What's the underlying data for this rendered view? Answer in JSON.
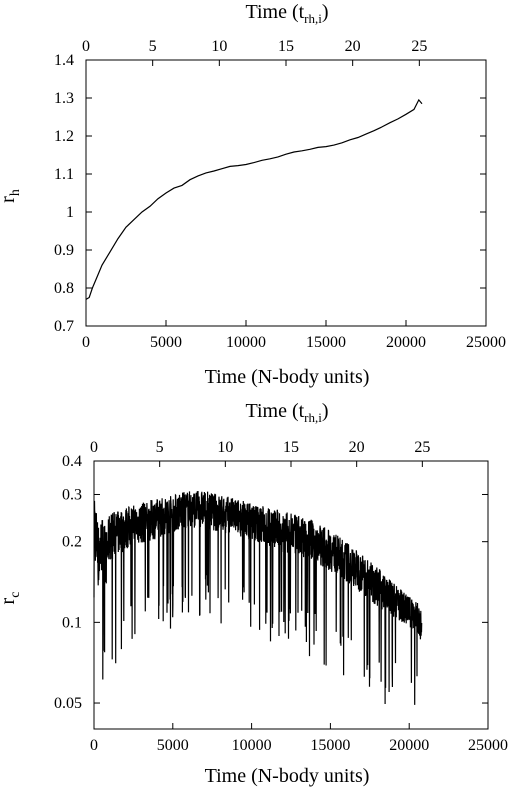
{
  "chart_data": [
    {
      "type": "line",
      "title": "",
      "xlabel": "Time (N-body units)",
      "x2label": {
        "base": "Time (t",
        "sub": "rh,i",
        "close": ")"
      },
      "ylabel": {
        "base": "r",
        "sub": "h"
      },
      "xlim": [
        0,
        25000
      ],
      "x2lim": [
        0,
        30
      ],
      "ylim": [
        0.7,
        1.4
      ],
      "grid": false,
      "xticks": [
        "0",
        "5000",
        "10000",
        "15000",
        "20000",
        "25000"
      ],
      "x2ticks": [
        "0",
        "5",
        "10",
        "15",
        "20",
        "25"
      ],
      "yticks": [
        "0.7",
        "0.8",
        "0.9",
        "1",
        "1.1",
        "1.2",
        "1.3",
        "1.4"
      ],
      "series": [
        {
          "x": [
            0,
            200,
            400,
            700,
            1000,
            1500,
            2000,
            2500,
            3000,
            3500,
            4000,
            4500,
            5000,
            5500,
            6000,
            6500,
            7000,
            7500,
            8000,
            8500,
            9000,
            9500,
            10000,
            10500,
            11000,
            11500,
            12000,
            12500,
            13000,
            13500,
            14000,
            14500,
            15000,
            15500,
            16000,
            16500,
            17000,
            17500,
            18000,
            18500,
            19000,
            19500,
            20000,
            20500,
            20800,
            21000
          ],
          "y": [
            0.77,
            0.775,
            0.8,
            0.83,
            0.86,
            0.895,
            0.93,
            0.96,
            0.98,
            1.0,
            1.015,
            1.035,
            1.05,
            1.063,
            1.07,
            1.085,
            1.095,
            1.103,
            1.108,
            1.114,
            1.12,
            1.122,
            1.125,
            1.13,
            1.136,
            1.14,
            1.145,
            1.152,
            1.158,
            1.161,
            1.165,
            1.17,
            1.172,
            1.176,
            1.182,
            1.19,
            1.196,
            1.205,
            1.214,
            1.224,
            1.235,
            1.245,
            1.257,
            1.27,
            1.295,
            1.285
          ]
        }
      ]
    },
    {
      "type": "line",
      "title": "",
      "xlabel": "Time (N-body units)",
      "x2label": {
        "base": "Time (t",
        "sub": "rh,i",
        "close": ")"
      },
      "ylabel": {
        "base": "r",
        "sub": "c"
      },
      "yscale": "log",
      "xlim": [
        0,
        25000
      ],
      "x2lim": [
        0,
        30
      ],
      "ylim": [
        0.04,
        0.4
      ],
      "grid": false,
      "xticks": [
        "0",
        "5000",
        "10000",
        "15000",
        "20000",
        "25000"
      ],
      "x2ticks": [
        "0",
        "5",
        "10",
        "15",
        "20",
        "25"
      ],
      "yticks": [
        "0.05",
        "0.1",
        "0.2",
        "0.3",
        "0.4"
      ],
      "series": [
        {
          "x": [
            0,
            100,
            300,
            500,
            800,
            1000,
            1500,
            2000,
            3000,
            4000,
            5000,
            6000,
            7000,
            8000,
            9000,
            10000,
            11000,
            12000,
            13000,
            14000,
            15000,
            16000,
            17000,
            18000,
            19000,
            20000,
            20500,
            20800
          ],
          "upper": [
            0.33,
            0.28,
            0.23,
            0.25,
            0.22,
            0.26,
            0.26,
            0.27,
            0.28,
            0.29,
            0.3,
            0.31,
            0.31,
            0.3,
            0.29,
            0.28,
            0.27,
            0.26,
            0.25,
            0.24,
            0.22,
            0.2,
            0.18,
            0.16,
            0.14,
            0.125,
            0.12,
            0.11
          ],
          "lower": [
            0.15,
            0.09,
            0.07,
            0.1,
            0.09,
            0.12,
            0.13,
            0.14,
            0.15,
            0.16,
            0.17,
            0.18,
            0.18,
            0.17,
            0.17,
            0.16,
            0.15,
            0.14,
            0.135,
            0.13,
            0.12,
            0.11,
            0.1,
            0.09,
            0.085,
            0.08,
            0.075,
            0.07
          ]
        }
      ]
    }
  ]
}
